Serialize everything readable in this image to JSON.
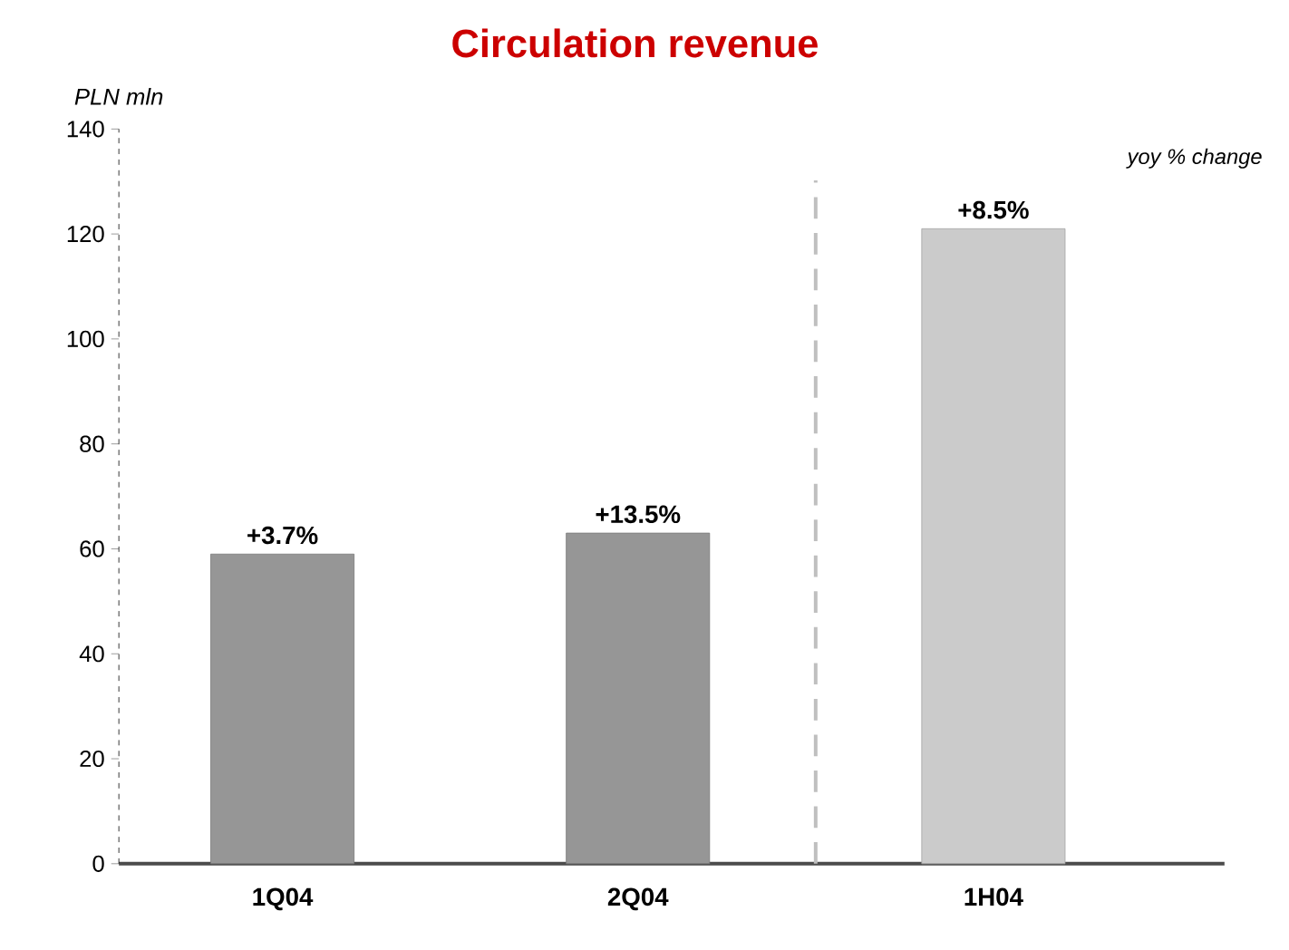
{
  "chart_data": {
    "type": "bar",
    "title": "Circulation revenue",
    "ylabel": "PLN mln",
    "categories": [
      "1Q04",
      "2Q04",
      "1H04"
    ],
    "values": [
      59,
      63,
      121
    ],
    "colors": [
      "#969696",
      "#969696",
      "#cbcbcb"
    ],
    "ylim": [
      0,
      140
    ],
    "yticks": [
      0,
      20,
      40,
      60,
      80,
      100,
      120,
      140
    ],
    "annotations": [
      "yoy % change",
      {
        "text": "+3.7%",
        "x": "1Q04",
        "y": 59
      },
      {
        "text": "+13.5%",
        "x": "2Q04",
        "y": 63
      },
      {
        "text": "+8.5%",
        "x": "1H04",
        "y": 121
      }
    ]
  }
}
